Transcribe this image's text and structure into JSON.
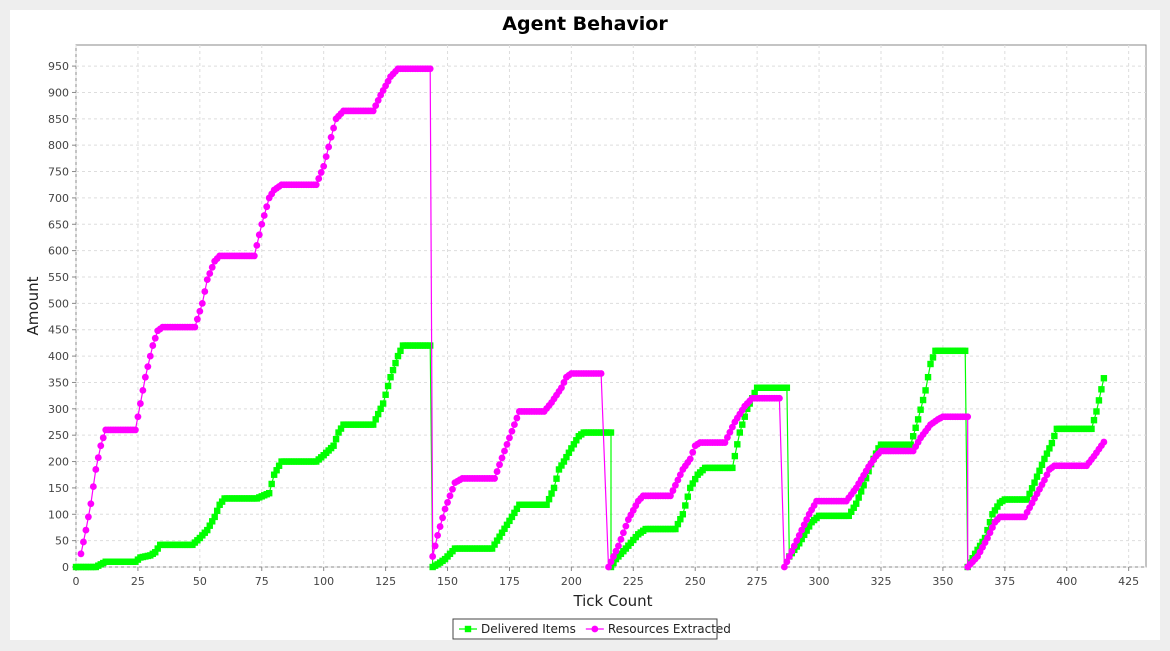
{
  "chart_data": {
    "type": "line",
    "title": "Agent Behavior",
    "xlabel": "Tick Count",
    "ylabel": "Amount",
    "xlim": [
      0,
      432
    ],
    "ylim": [
      0,
      990
    ],
    "x_ticks": [
      0,
      25,
      50,
      75,
      100,
      125,
      150,
      175,
      200,
      225,
      250,
      275,
      300,
      325,
      350,
      375,
      400,
      425
    ],
    "y_ticks": [
      0,
      50,
      100,
      150,
      200,
      250,
      300,
      350,
      400,
      450,
      500,
      550,
      600,
      650,
      700,
      750,
      800,
      850,
      900,
      950
    ],
    "grid": true,
    "legend_position": "bottom-center",
    "series": [
      {
        "name": "Delivered Items",
        "color": "#00ff00",
        "marker": "square",
        "points": [
          [
            0,
            0
          ],
          [
            8,
            0
          ],
          [
            10,
            5
          ],
          [
            12,
            10
          ],
          [
            24,
            10
          ],
          [
            26,
            18
          ],
          [
            30,
            22
          ],
          [
            32,
            28
          ],
          [
            34,
            42
          ],
          [
            47,
            42
          ],
          [
            50,
            55
          ],
          [
            53,
            70
          ],
          [
            56,
            95
          ],
          [
            58,
            118
          ],
          [
            60,
            130
          ],
          [
            73,
            130
          ],
          [
            78,
            140
          ],
          [
            80,
            175
          ],
          [
            82,
            192
          ],
          [
            83,
            200
          ],
          [
            97,
            200
          ],
          [
            100,
            212
          ],
          [
            104,
            230
          ],
          [
            106,
            255
          ],
          [
            108,
            270
          ],
          [
            120,
            270
          ],
          [
            124,
            310
          ],
          [
            127,
            360
          ],
          [
            130,
            400
          ],
          [
            132,
            420
          ],
          [
            143,
            420
          ],
          [
            144,
            0
          ],
          [
            146,
            5
          ],
          [
            149,
            15
          ],
          [
            153,
            35
          ],
          [
            168,
            35
          ],
          [
            172,
            65
          ],
          [
            176,
            95
          ],
          [
            179,
            118
          ],
          [
            190,
            118
          ],
          [
            193,
            150
          ],
          [
            195,
            185
          ],
          [
            197,
            200
          ],
          [
            200,
            225
          ],
          [
            203,
            248
          ],
          [
            205,
            255
          ],
          [
            216,
            255
          ],
          [
            216,
            0
          ],
          [
            218,
            15
          ],
          [
            222,
            35
          ],
          [
            227,
            62
          ],
          [
            230,
            72
          ],
          [
            242,
            72
          ],
          [
            245,
            100
          ],
          [
            248,
            150
          ],
          [
            251,
            175
          ],
          [
            254,
            188
          ],
          [
            265,
            188
          ],
          [
            268,
            255
          ],
          [
            271,
            300
          ],
          [
            273,
            320
          ],
          [
            275,
            340
          ],
          [
            287,
            340
          ],
          [
            288,
            20
          ],
          [
            292,
            45
          ],
          [
            297,
            85
          ],
          [
            300,
            97
          ],
          [
            312,
            97
          ],
          [
            315,
            120
          ],
          [
            318,
            155
          ],
          [
            321,
            195
          ],
          [
            324,
            225
          ],
          [
            325,
            232
          ],
          [
            337,
            232
          ],
          [
            340,
            280
          ],
          [
            343,
            335
          ],
          [
            345,
            385
          ],
          [
            347,
            410
          ],
          [
            359,
            410
          ],
          [
            360,
            0
          ],
          [
            363,
            25
          ],
          [
            367,
            55
          ],
          [
            370,
            100
          ],
          [
            373,
            122
          ],
          [
            375,
            128
          ],
          [
            384,
            128
          ],
          [
            387,
            160
          ],
          [
            391,
            205
          ],
          [
            394,
            235
          ],
          [
            396,
            262
          ],
          [
            410,
            262
          ],
          [
            412,
            295
          ],
          [
            415,
            358
          ]
        ]
      },
      {
        "name": "Resources Extracted",
        "color": "#ff00ff",
        "marker": "circle",
        "points": [
          [
            2,
            25
          ],
          [
            4,
            70
          ],
          [
            6,
            120
          ],
          [
            8,
            185
          ],
          [
            10,
            230
          ],
          [
            12,
            260
          ],
          [
            24,
            260
          ],
          [
            26,
            310
          ],
          [
            28,
            360
          ],
          [
            31,
            420
          ],
          [
            33,
            448
          ],
          [
            35,
            455
          ],
          [
            48,
            455
          ],
          [
            51,
            500
          ],
          [
            53,
            545
          ],
          [
            56,
            580
          ],
          [
            58,
            590
          ],
          [
            72,
            590
          ],
          [
            75,
            650
          ],
          [
            78,
            700
          ],
          [
            80,
            715
          ],
          [
            83,
            725
          ],
          [
            97,
            725
          ],
          [
            100,
            760
          ],
          [
            103,
            815
          ],
          [
            105,
            850
          ],
          [
            108,
            865
          ],
          [
            120,
            865
          ],
          [
            123,
            895
          ],
          [
            127,
            930
          ],
          [
            130,
            945
          ],
          [
            143,
            945
          ],
          [
            144,
            20
          ],
          [
            146,
            60
          ],
          [
            149,
            110
          ],
          [
            153,
            160
          ],
          [
            156,
            168
          ],
          [
            169,
            168
          ],
          [
            173,
            220
          ],
          [
            177,
            270
          ],
          [
            179,
            295
          ],
          [
            189,
            295
          ],
          [
            192,
            312
          ],
          [
            196,
            340
          ],
          [
            198,
            360
          ],
          [
            200,
            367
          ],
          [
            212,
            367
          ],
          [
            215,
            0
          ],
          [
            219,
            40
          ],
          [
            223,
            90
          ],
          [
            227,
            125
          ],
          [
            229,
            135
          ],
          [
            240,
            135
          ],
          [
            243,
            165
          ],
          [
            245,
            185
          ],
          [
            248,
            205
          ],
          [
            250,
            230
          ],
          [
            252,
            236
          ],
          [
            262,
            236
          ],
          [
            266,
            275
          ],
          [
            270,
            305
          ],
          [
            273,
            320
          ],
          [
            284,
            320
          ],
          [
            286,
            0
          ],
          [
            289,
            30
          ],
          [
            293,
            70
          ],
          [
            296,
            100
          ],
          [
            299,
            125
          ],
          [
            311,
            125
          ],
          [
            315,
            150
          ],
          [
            320,
            190
          ],
          [
            323,
            210
          ],
          [
            325,
            220
          ],
          [
            338,
            220
          ],
          [
            341,
            245
          ],
          [
            345,
            270
          ],
          [
            348,
            280
          ],
          [
            350,
            285
          ],
          [
            360,
            285
          ],
          [
            360,
            0
          ],
          [
            364,
            20
          ],
          [
            368,
            55
          ],
          [
            371,
            85
          ],
          [
            373,
            95
          ],
          [
            383,
            95
          ],
          [
            387,
            130
          ],
          [
            391,
            165
          ],
          [
            393,
            185
          ],
          [
            395,
            192
          ],
          [
            408,
            192
          ],
          [
            411,
            210
          ],
          [
            415,
            237
          ]
        ]
      }
    ]
  }
}
